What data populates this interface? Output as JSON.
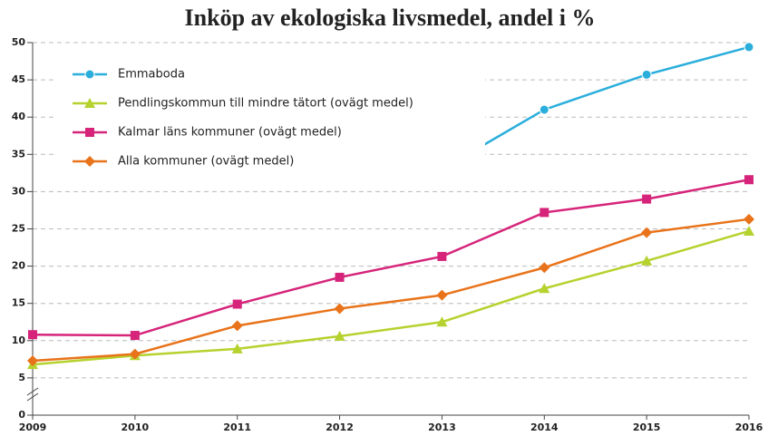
{
  "chart_data": {
    "type": "line",
    "title": "Inköp av ekologiska livsmedel, andel i %",
    "categories": [
      "2009",
      "2010",
      "2011",
      "2012",
      "2013",
      "2014",
      "2015",
      "2016"
    ],
    "series": [
      {
        "name": "Emmaboda",
        "color": "#2aaedc",
        "marker": "circle",
        "values": [
          null,
          null,
          null,
          null,
          33,
          41,
          45.7,
          49.4
        ]
      },
      {
        "name": "Pendlingskommun till mindre tätort (ovägt medel)",
        "color": "#b5d22e",
        "marker": "triangle",
        "values": [
          6.8,
          8.0,
          8.9,
          10.6,
          12.5,
          17.0,
          20.7,
          24.7
        ]
      },
      {
        "name": "Kalmar läns kommuner (ovägt medel)",
        "color": "#d6247a",
        "marker": "square",
        "values": [
          10.8,
          10.7,
          14.9,
          18.5,
          21.3,
          27.2,
          29.0,
          31.6
        ]
      },
      {
        "name": "Alla kommuner (ovägt medel)",
        "color": "#e8731a",
        "marker": "diamond",
        "values": [
          7.3,
          8.2,
          12.0,
          14.3,
          16.1,
          19.8,
          24.5,
          26.3
        ]
      }
    ],
    "ylim": [
      0,
      50
    ],
    "yticks": [
      0,
      5,
      10,
      15,
      20,
      25,
      30,
      35,
      40,
      45,
      50
    ],
    "grid": true,
    "legend": "top-left"
  }
}
